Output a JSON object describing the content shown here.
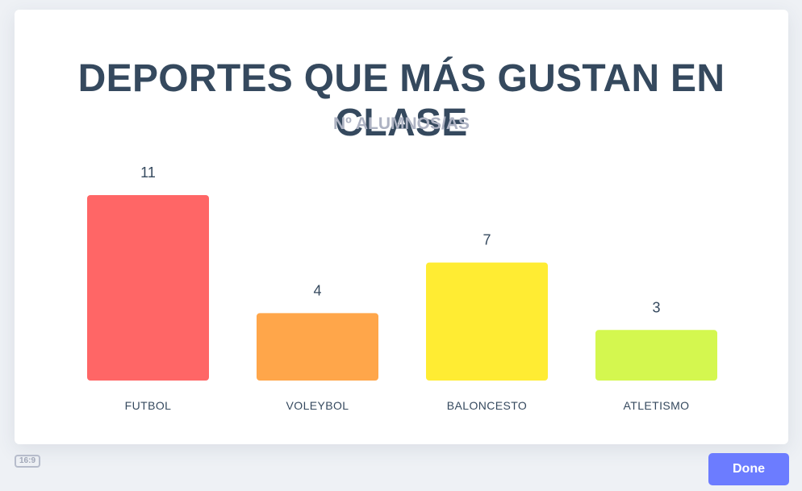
{
  "chart_data": {
    "type": "bar",
    "title": "DEPORTES QUE MÁS GUSTAN EN CLASE",
    "subtitle": "Nº ALUMNOS/AS",
    "categories": [
      "FUTBOL",
      "VOLEYBOL",
      "BALONCESTO",
      "ATLETISMO"
    ],
    "values": [
      11,
      4,
      7,
      3
    ],
    "colors": [
      "#ff6666",
      "#ffa64a",
      "#ffec33",
      "#d4f74f"
    ],
    "ylim": [
      0,
      11
    ],
    "grid": false,
    "legend": "none"
  },
  "footer": {
    "aspect_label": "16:9",
    "done_label": "Done"
  }
}
